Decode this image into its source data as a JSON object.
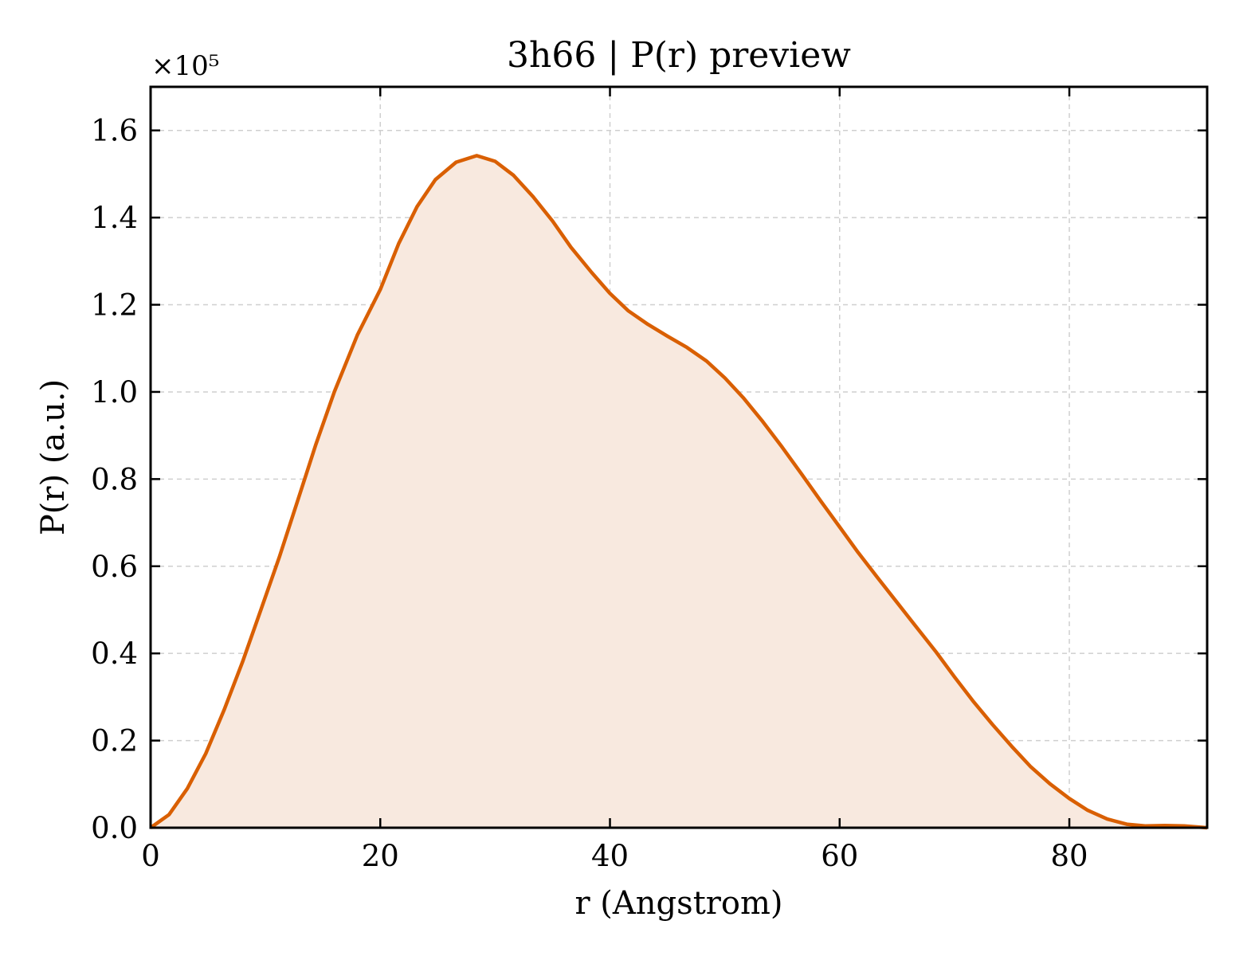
{
  "colors": {
    "line": "#d95f02",
    "fill": "#f8e9df",
    "grid": "#cfcfcf",
    "axis": "#000000"
  },
  "chart_data": {
    "type": "area",
    "title": "3h66 | P(r) preview",
    "xlabel": "r (Angstrom)",
    "ylabel": "P(r) (a.u.)",
    "y_multiplier_label": "×10⁵",
    "y_scale": 100000,
    "xlim": [
      0,
      92
    ],
    "ylim": [
      0,
      1.7
    ],
    "xticks": [
      0,
      20,
      40,
      60,
      80
    ],
    "xtick_labels": [
      "0",
      "20",
      "40",
      "60",
      "80"
    ],
    "yticks": [
      0.0,
      0.2,
      0.4,
      0.6,
      0.8,
      1.0,
      1.2,
      1.4,
      1.6
    ],
    "ytick_labels": [
      "0.0",
      "0.2",
      "0.4",
      "0.6",
      "0.8",
      "1.0",
      "1.2",
      "1.4",
      "1.6"
    ],
    "grid": true,
    "series": [
      {
        "x": [
          0,
          1.6,
          3.2,
          4.8,
          6.4,
          8.0,
          9.6,
          11.2,
          12.8,
          14.4,
          16.0,
          18.0,
          20.0,
          21.6,
          23.2,
          24.8,
          26.6,
          28.4,
          30.0,
          31.6,
          33.3,
          35.0,
          36.6,
          38.4,
          40.0,
          41.6,
          43.3,
          45.0,
          46.7,
          48.4,
          50.0,
          51.6,
          53.3,
          55.0,
          56.7,
          58.4,
          60.0,
          61.6,
          63.3,
          65.0,
          66.7,
          68.4,
          70.0,
          71.6,
          73.3,
          75.0,
          76.6,
          78.3,
          80.0,
          81.6,
          83.3,
          85.0,
          86.6,
          88.3,
          90.0,
          92.0
        ],
        "y": [
          0.0,
          0.03,
          0.09,
          0.17,
          0.27,
          0.38,
          0.5,
          0.62,
          0.75,
          0.88,
          1.0,
          1.13,
          1.235,
          1.34,
          1.425,
          1.487,
          1.527,
          1.542,
          1.529,
          1.497,
          1.448,
          1.392,
          1.332,
          1.274,
          1.226,
          1.186,
          1.155,
          1.128,
          1.102,
          1.071,
          1.032,
          0.987,
          0.932,
          0.873,
          0.811,
          0.748,
          0.69,
          0.632,
          0.574,
          0.517,
          0.46,
          0.403,
          0.346,
          0.291,
          0.237,
          0.186,
          0.141,
          0.101,
          0.067,
          0.04,
          0.02,
          0.008,
          0.004,
          0.005,
          0.004,
          0.0
        ]
      }
    ]
  }
}
